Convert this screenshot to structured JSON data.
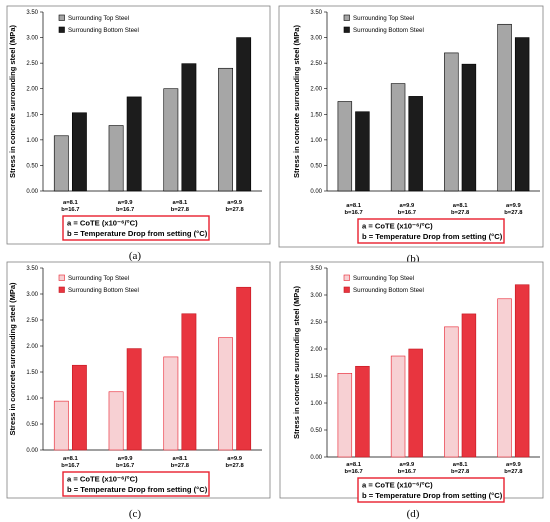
{
  "chart_data": [
    {
      "panel_label": "(a)",
      "type": "bar",
      "ylabel": "Stress in concrete surrounding steel (MPa)",
      "ylim": [
        0,
        3.5
      ],
      "yticks": [
        "0.00",
        "0.50",
        "1.00",
        "1.50",
        "2.00",
        "2.50",
        "3.00",
        "3.50"
      ],
      "categories": [
        [
          "a=8.1",
          "b=16.7"
        ],
        [
          "a=9.9",
          "b=16.7"
        ],
        [
          "a=8.1",
          "b=27.8"
        ],
        [
          "a=9.9",
          "b=27.8"
        ]
      ],
      "series": [
        {
          "name": "Surrounding Top Steel",
          "values": [
            1.08,
            1.28,
            2.0,
            2.4
          ]
        },
        {
          "name": "Surrounding Bottom Steel",
          "values": [
            1.53,
            1.84,
            2.49,
            3.0
          ]
        }
      ],
      "colors": {
        "top_fill": "#a6a6a6",
        "top_stroke": "#000000",
        "bottom_fill": "#1c1c1c",
        "bottom_stroke": "#000000"
      },
      "legend_position": "top-left",
      "note": [
        "a = CoTE (x10⁻⁶/°C)",
        "b = Temperature Drop from setting (°C)"
      ]
    },
    {
      "panel_label": "(b)",
      "type": "bar",
      "ylabel": "Stress in concrete surrounding steel (MPa)",
      "ylim": [
        0,
        3.5
      ],
      "yticks": [
        "0.00",
        "0.50",
        "1.00",
        "1.50",
        "2.00",
        "2.50",
        "3.00",
        "3.50"
      ],
      "categories": [
        [
          "a=8.1",
          "b=16.7"
        ],
        [
          "a=9.9",
          "b=16.7"
        ],
        [
          "a=8.1",
          "b=27.8"
        ],
        [
          "a=9.9",
          "b=27.8"
        ]
      ],
      "series": [
        {
          "name": "Surrounding Top Steel",
          "values": [
            1.75,
            2.1,
            2.7,
            3.26
          ]
        },
        {
          "name": "Surrounding Bottom Steel",
          "values": [
            1.55,
            1.85,
            2.48,
            3.0
          ]
        }
      ],
      "colors": {
        "top_fill": "#a6a6a6",
        "top_stroke": "#000000",
        "bottom_fill": "#1c1c1c",
        "bottom_stroke": "#000000"
      },
      "legend_position": "top-left",
      "note": [
        "a = CoTE (x10⁻⁶/°C)",
        "b = Temperature Drop from setting (°C)"
      ]
    },
    {
      "panel_label": "(c)",
      "type": "bar",
      "ylabel": "Stress in concrete surrounding steel (MPa)",
      "ylim": [
        0,
        3.5
      ],
      "yticks": [
        "0.00",
        "0.50",
        "1.00",
        "1.50",
        "2.00",
        "2.50",
        "3.00",
        "3.50"
      ],
      "categories": [
        [
          "a=8.1",
          "b=16.7"
        ],
        [
          "a=9.9",
          "b=16.7"
        ],
        [
          "a=8.1",
          "b=27.8"
        ],
        [
          "a=9.9",
          "b=27.8"
        ]
      ],
      "series": [
        {
          "name": "Surrounding Top Steel",
          "values": [
            0.94,
            1.12,
            1.79,
            2.16
          ]
        },
        {
          "name": "Surrounding Bottom Steel",
          "values": [
            1.63,
            1.95,
            2.62,
            3.13
          ]
        }
      ],
      "colors": {
        "top_fill": "#f7d0d3",
        "top_stroke": "#e8202e",
        "bottom_fill": "#e8353f",
        "bottom_stroke": "#c4161f"
      },
      "legend_position": "top-left",
      "note": [
        "a = CoTE (x10⁻⁶/°C)",
        "b = Temperature Drop from setting (°C)"
      ]
    },
    {
      "panel_label": "(d)",
      "type": "bar",
      "ylabel": "Stress in concrete surrounding steel (MPa)",
      "ylim": [
        0,
        3.5
      ],
      "yticks": [
        "0.00",
        "0.50",
        "1.00",
        "1.50",
        "2.00",
        "2.50",
        "3.00",
        "3.50"
      ],
      "categories": [
        [
          "a=8.1",
          "b=16.7"
        ],
        [
          "a=9.9",
          "b=16.7"
        ],
        [
          "a=8.1",
          "b=27.8"
        ],
        [
          "a=9.9",
          "b=27.8"
        ]
      ],
      "series": [
        {
          "name": "Surrounding Top Steel",
          "values": [
            1.55,
            1.87,
            2.41,
            2.93
          ]
        },
        {
          "name": "Surrounding Bottom Steel",
          "values": [
            1.68,
            2.0,
            2.65,
            3.19
          ]
        }
      ],
      "colors": {
        "top_fill": "#f7d0d3",
        "top_stroke": "#e8202e",
        "bottom_fill": "#e8353f",
        "bottom_stroke": "#c4161f"
      },
      "legend_position": "top-left",
      "note": [
        "a = CoTE (x10⁻⁶/°C)",
        "b = Temperature Drop from setting (°C)"
      ]
    }
  ],
  "colors": {
    "frame": "#7f7f7f",
    "note_border": "#e8202e"
  }
}
